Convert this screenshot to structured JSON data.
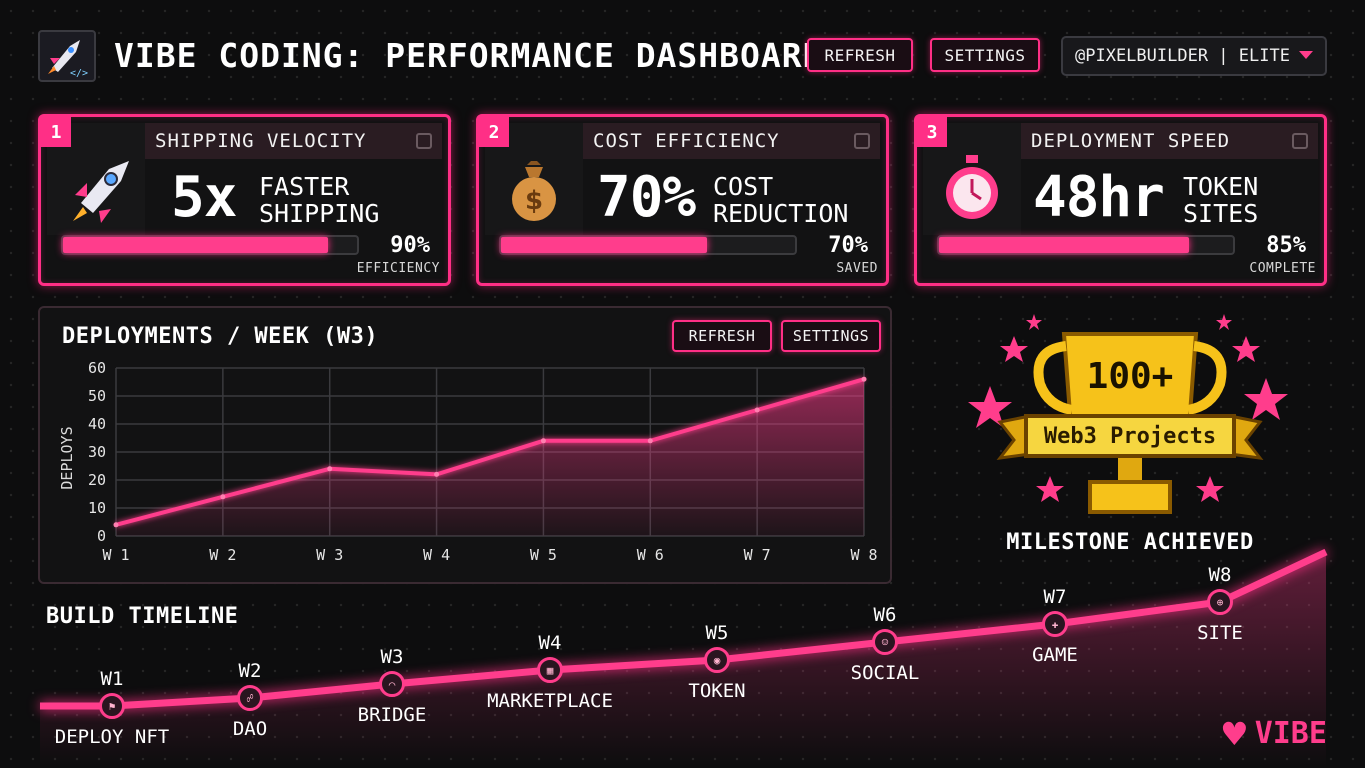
{
  "header": {
    "title": "VIBE CODING: PERFORMANCE DASHBOARD",
    "refresh_label": "REFRESH",
    "settings_label": "SETTINGS",
    "user_label": "@PIXELBUILDER | ELITE"
  },
  "cards": [
    {
      "num": "1",
      "title": "SHIPPING VELOCITY",
      "big": "5x",
      "sub": "FASTER\nSHIPPING",
      "progress": 0.9,
      "pct": "90%",
      "pct_label": "EFFICIENCY",
      "icon": "rocket-icon"
    },
    {
      "num": "2",
      "title": "COST EFFICIENCY",
      "big": "70%",
      "sub": "COST\nREDUCTION",
      "progress": 0.7,
      "pct": "70%",
      "pct_label": "SAVED",
      "icon": "money-bag-icon"
    },
    {
      "num": "3",
      "title": "DEPLOYMENT SPEED",
      "big": "48hr",
      "sub": "TOKEN\nSITES",
      "progress": 0.85,
      "pct": "85%",
      "pct_label": "COMPLETE",
      "icon": "stopwatch-icon"
    }
  ],
  "chart_panel": {
    "title": "DEPLOYMENTS / WEEK (W3)",
    "refresh_label": "REFRESH",
    "settings_label": "SETTINGS"
  },
  "chart_data": {
    "type": "area",
    "title": "DEPLOYMENTS / WEEK (W3)",
    "ylabel": "DEPLOYS",
    "xlabel": "",
    "categories": [
      "W 1",
      "W 2",
      "W 3",
      "W 4",
      "W 5",
      "W 6",
      "W 7",
      "W 8"
    ],
    "values": [
      4,
      14,
      24,
      22,
      34,
      34,
      45,
      56
    ],
    "ylim": [
      0,
      60
    ],
    "yticks": [
      0,
      10,
      20,
      30,
      40,
      50,
      60
    ],
    "grid": true,
    "color": "#ff3d8c"
  },
  "trophy": {
    "count": "100+",
    "banner": "Web3 Projects",
    "caption": "MILESTONE ACHIEVED"
  },
  "timeline": {
    "title": "BUILD TIMELINE",
    "items": [
      {
        "week": "W1",
        "label": "DEPLOY NFT",
        "icon": "flag-icon"
      },
      {
        "week": "W2",
        "label": "DAO",
        "icon": "users-icon"
      },
      {
        "week": "W3",
        "label": "BRIDGE",
        "icon": "bridge-icon"
      },
      {
        "week": "W4",
        "label": "MARKETPLACE",
        "icon": "store-icon"
      },
      {
        "week": "W5",
        "label": "TOKEN",
        "icon": "coin-icon"
      },
      {
        "week": "W6",
        "label": "SOCIAL",
        "icon": "people-icon"
      },
      {
        "week": "W7",
        "label": "GAME",
        "icon": "gamepad-icon"
      },
      {
        "week": "W8",
        "label": "SITE",
        "icon": "globe-icon"
      }
    ]
  },
  "brand": {
    "label": "VIBE"
  },
  "colors": {
    "accent": "#ff3d8c",
    "gold": "#f6c21a",
    "background": "#0d0d0e"
  }
}
